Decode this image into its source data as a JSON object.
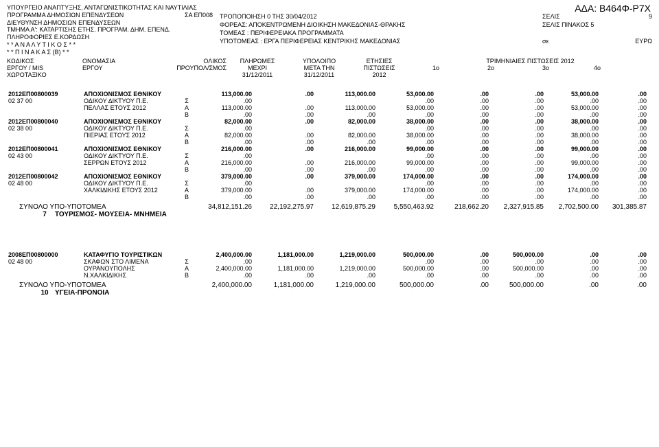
{
  "ada": "ΑΔΑ: Β464Φ-Ρ7Χ",
  "header": {
    "left": [
      "ΥΠΟΥΡΓΕΙΟ ΑΝΑΠΤΥΞΗΣ, ΑΝΤΑΓΩΝΙΣΤΙΚΟΤΗΤΑΣ ΚΑΙ ΝΑΥΤΙΛΙΑΣ",
      "ΠΡΟΓΡΑΜΜΑ ΔΗΜΟΣΙΩΝ ΕΠΕΝΔΥΣΕΩΝ",
      "ΔΙΕΥΘΥΝΣΗ ΔΗΜΟΣΙΩΝ ΕΠΕΝΔΥΣΕΩΝ",
      "ΤΜΗΜΑ  Α': ΚΑΤΑΡΤΙΣΗΣ ΕΤΗΣ. ΠΡΟΓΡΑΜ. ΔΗΜ. ΕΠΕΝΔ.",
      "ΠΛΗΡΟΦΟΡΙΕΣ Ε.ΚΟΡΔΩΣΗ",
      "* *  Α Ν Α Λ Υ Τ Ι Κ Ο Σ  * *",
      "* *  Π Ι Ν Α Κ Α Σ  (Β)  * *"
    ],
    "sa": "ΣΑ  ΕΠ008",
    "mid": [
      "ΤΡΟΠΟΠΟΙΗΣΗ  0         ΤΗΣ  30/04/2012",
      "ΦΟΡΕΑΣ:  ΑΠΟΚΕΝΤΡΩΜΕΝΗ ΔΙΟΙΚΗΣΗ ΜΑΚΕΔΟΝΙΑΣ-ΘΡΑΚΗΣ",
      "ΤΟΜΕΑΣ :  ΠΕΡΙΦΕΡΕΙΑΚΑ ΠΡΟΓΡΑΜΜΑΤΑ",
      "ΥΠΟΤΟΜΕΑΣ :   ΕΡΓΑ ΠΕΡΙΦΕΡΕΙΑΣ ΚΕΝΤΡΙΚΗΣ ΜΑΚΕΔΟΝΙΑΣ"
    ],
    "right": {
      "selis": "ΣΕΛΙΣ",
      "selis_n": "9",
      "selis_pinakos": "ΣΕΛΙΣ ΠΙΝΑΚΟΣ  5",
      "se": "σε",
      "euro": "ΕΥΡΩ"
    }
  },
  "colhead": {
    "l1": "ΚΩΔΙΚΟΣ",
    "l2": "ΕΡΓΟΥ / MIS",
    "l3": "ΧΩΡΟΤΑΞΙΚΟ",
    "name1": "ΟΝΟΜΑΣΙΑ",
    "name2": "ΕΡΓΟΥ",
    "c1a": "ΟΛΙΚΟΣ",
    "c1b": "ΠΡΟΥΠΟΛ/ΣΜΟΣ",
    "c2a": "ΠΛΗΡΩΜΕΣ",
    "c2b": "ΜΕΧΡΙ",
    "c2c": "31/12/2011",
    "c3a": "ΥΠΟΛΟΙΠΟ",
    "c3b": "ΜΕΤΑ ΤΗΝ",
    "c3c": "31/12/2011",
    "c4a": "ΕΤΗΣΙΕΣ",
    "c4b": "ΠΙΣΤΩΣΕΙΣ",
    "c4c": "2012",
    "tri": "ΤΡΙΜΗΝΙΑΙΕΣ ΠΙΣΤΩΣΕΙΣ  2012",
    "q1": "1ο",
    "q2": "2ο",
    "q3": "3ο",
    "q4": "4ο"
  },
  "projects": [
    {
      "code": "2012ΕΠ00800039",
      "loc": "02 37 00",
      "title": [
        "ΑΠΟΧΙΟΝΙΣΜΟΣ ΕΘΝΙΚΟΥ",
        "ΟΔΙΚΟΥ ΔΙΚΤΥΟΥ Π.Ε.",
        "ΠΕΛΛΑΣ ΕΤΟΥΣ 2012"
      ],
      "main": [
        "113,000.00",
        ".00",
        "113,000.00",
        "53,000.00",
        ".00",
        ".00",
        "53,000.00",
        ".00"
      ],
      "S": [
        ".00",
        "",
        ".00",
        ".00",
        ".00",
        ".00",
        ".00"
      ],
      "A": [
        "113,000.00",
        ".00",
        "113,000.00",
        "53,000.00",
        ".00",
        ".00",
        "53,000.00",
        ".00"
      ],
      "B": [
        ".00",
        ".00",
        ".00",
        ".00",
        ".00",
        ".00",
        ".00",
        ".00"
      ]
    },
    {
      "code": "2012ΕΠ00800040",
      "loc": "02 38 00",
      "title": [
        "ΑΠΟΧΙΟΝΙΣΜΟΣ ΕΘΝΙΚΟΥ",
        "ΟΔΙΚΟΥ ΔΙΚΤΥΟΥ Π.Ε.",
        "ΠΙΕΡΙΑΣ ΕΤΟΥΣ 2012"
      ],
      "main": [
        "82,000.00",
        ".00",
        "82,000.00",
        "38,000.00",
        ".00",
        ".00",
        "38,000.00",
        ".00"
      ],
      "S": [
        ".00",
        "",
        ".00",
        ".00",
        ".00",
        ".00",
        ".00"
      ],
      "A": [
        "82,000.00",
        ".00",
        "82,000.00",
        "38,000.00",
        ".00",
        ".00",
        "38,000.00",
        ".00"
      ],
      "B": [
        ".00",
        ".00",
        ".00",
        ".00",
        ".00",
        ".00",
        ".00",
        ".00"
      ]
    },
    {
      "code": "2012ΕΠ00800041",
      "loc": "02 43 00",
      "title": [
        "ΑΠΟΧΙΟΝΙΣΜΟΣ ΕΘΝΙΚΟΥ",
        "ΟΔΙΚΟΥ ΔΙΚΤΥΟΥ Π.Ε.",
        "ΣΕΡΡΩΝ ΕΤΟΥΣ 2012"
      ],
      "main": [
        "216,000.00",
        ".00",
        "216,000.00",
        "99,000.00",
        ".00",
        ".00",
        "99,000.00",
        ".00"
      ],
      "S": [
        ".00",
        "",
        ".00",
        ".00",
        ".00",
        ".00",
        ".00"
      ],
      "A": [
        "216,000.00",
        ".00",
        "216,000.00",
        "99,000.00",
        ".00",
        ".00",
        "99,000.00",
        ".00"
      ],
      "B": [
        ".00",
        ".00",
        ".00",
        ".00",
        ".00",
        ".00",
        ".00",
        ".00"
      ]
    },
    {
      "code": "2012ΕΠ00800042",
      "loc": "02 48 00",
      "title": [
        "ΑΠΟΧΙΟΝΙΣΜΟΣ ΕΘΝΙΚΟΥ",
        "ΟΔΙΚΟΥ ΔΙΚΤΥΟΥ Π.Ε.",
        "ΧΑΛΚΙΔΙΚΗΣ ΕΤΟΥΣ 2012"
      ],
      "main": [
        "379,000.00",
        ".00",
        "379,000.00",
        "174,000.00",
        ".00",
        ".00",
        "174,000.00",
        ".00"
      ],
      "S": [
        ".00",
        "",
        ".00",
        ".00",
        ".00",
        ".00",
        ".00"
      ],
      "A": [
        "379,000.00",
        ".00",
        "379,000.00",
        "174,000.00",
        ".00",
        ".00",
        "174,000.00",
        ".00"
      ],
      "B": [
        ".00",
        ".00",
        ".00",
        ".00",
        ".00",
        ".00",
        ".00",
        ".00"
      ]
    }
  ],
  "subtotal1": {
    "label": "ΣΥΝΟΛΟ  ΥΠΟ-ΥΠΟΤΟΜΕΑ",
    "vals": [
      "34,812,151.26",
      "22,192,275.97",
      "12,619,875.29",
      "5,550,463.92",
      "218,662.20",
      "2,327,915.85",
      "2,702,500.00",
      "301,385.87"
    ]
  },
  "section_a": {
    "num": "7",
    "title": "ΤΟΥΡΙΣΜΟΣ- ΜΟΥΣΕΙΑ- ΜΝΗΜΕΙΑ"
  },
  "proj2": {
    "code": "2008ΕΠ00800000",
    "loc": "02 48 00",
    "title": [
      "ΚΑΤΑΦΥΓΙΟ ΤΟΥΡΙΣΤΙΚΩΝ",
      "ΣΚΑΦΩΝ ΣΤΟ ΛΙΜΕΝΑ",
      "ΟΥΡΑΝΟΥΠΟΛΗΣ",
      "Ν.ΧΑΛΚΙΔΙΚΗΣ"
    ],
    "main": [
      "2,400,000.00",
      "1,181,000.00",
      "1,219,000.00",
      "500,000.00",
      ".00",
      "500,000.00",
      ".00",
      ".00"
    ],
    "S": [
      ".00",
      "",
      ".00",
      ".00",
      ".00",
      ".00",
      ".00"
    ],
    "A": [
      "2,400,000.00",
      "1,181,000.00",
      "1,219,000.00",
      "500,000.00",
      ".00",
      "500,000.00",
      ".00",
      ".00"
    ],
    "B": [
      ".00",
      ".00",
      ".00",
      ".00",
      ".00",
      ".00",
      ".00",
      ".00"
    ]
  },
  "subtotal2": {
    "label": "ΣΥΝΟΛΟ  ΥΠΟ-ΥΠΟΤΟΜΕΑ",
    "vals": [
      "2,400,000.00",
      "1,181,000.00",
      "1,219,000.00",
      "500,000.00",
      ".00",
      "500,000.00",
      ".00",
      ".00"
    ]
  },
  "section_b": {
    "num": "10",
    "title": "ΥΓΕΙΑ-ΠΡΟΝΟΙΑ"
  },
  "letters": {
    "S": "Σ",
    "A": "Α",
    "B": "Β"
  }
}
